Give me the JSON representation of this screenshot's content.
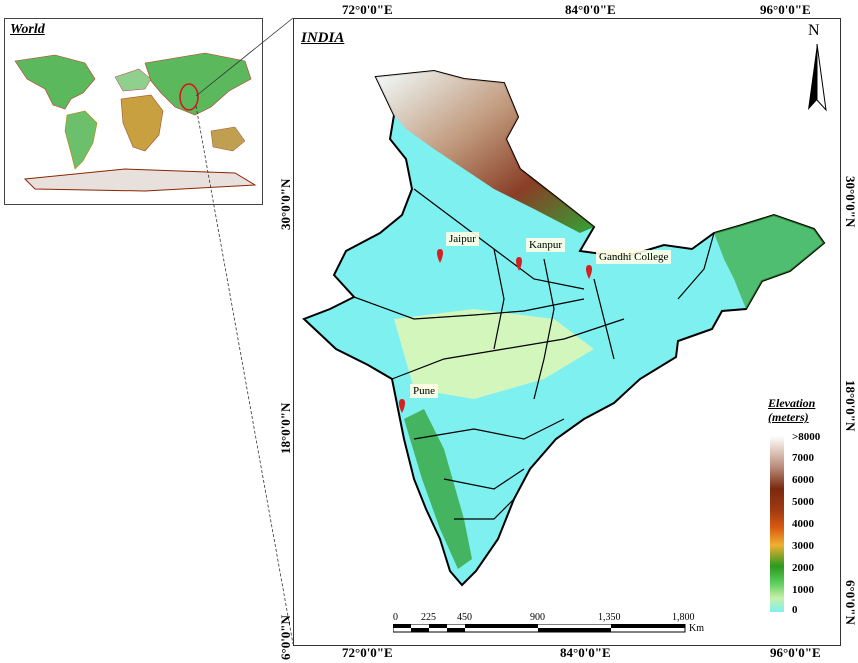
{
  "inset": {
    "title": "World"
  },
  "map": {
    "title": "INDIA"
  },
  "top_ticks": [
    "72°0'0\"E",
    "84°0'0\"E",
    "96°0'0\"E"
  ],
  "bottom_ticks": [
    "72°0'0\"E",
    "84°0'0\"E",
    "96°0'0\"E"
  ],
  "left_ticks": [
    "30°0'0\"N",
    "18°0'0\"N",
    "6°0'0\"N"
  ],
  "right_ticks": [
    "30°0'0\"N",
    "18°0'0\"N",
    "6°0'0\"N"
  ],
  "north_arrow": {
    "label": "N"
  },
  "cities": {
    "jaipur": "Jaipur",
    "kanpur": "Kanpur",
    "gandhi": "Gandhi College",
    "pune": "Pune"
  },
  "legend": {
    "title_line1": "Elevation",
    "title_line2": "(meters)",
    "ticks": [
      ">8000",
      "7000",
      "6000",
      "5000",
      "4000",
      "3000",
      "2000",
      "1000",
      "0"
    ]
  },
  "scale_bar": {
    "labels": [
      "0",
      "225",
      "450",
      "900",
      "1,350",
      "1,800"
    ],
    "unit": "Km"
  },
  "colors": {
    "marker": "#d42020",
    "lowland": "#7ff0f0",
    "border": "#000000"
  }
}
